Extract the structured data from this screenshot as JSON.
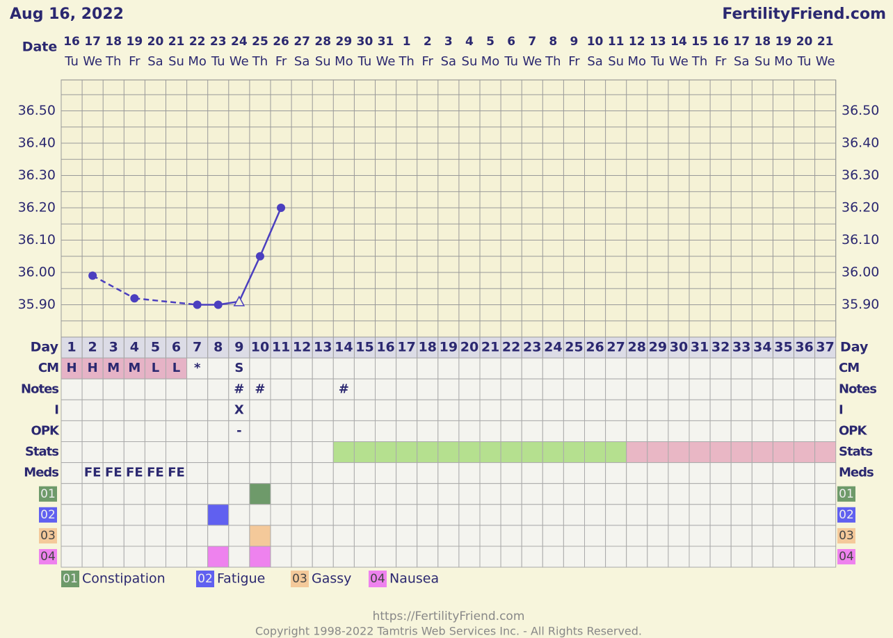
{
  "header": {
    "date": "Aug 16, 2022",
    "site": "FertilityFriend.com"
  },
  "chart_data": {
    "type": "line",
    "date_label": "Date",
    "dates": [
      "16",
      "17",
      "18",
      "19",
      "20",
      "21",
      "22",
      "23",
      "24",
      "25",
      "26",
      "27",
      "28",
      "29",
      "30",
      "31",
      "1",
      "2",
      "3",
      "4",
      "5",
      "6",
      "7",
      "8",
      "9",
      "10",
      "11",
      "12",
      "13",
      "14",
      "15",
      "16",
      "17",
      "18",
      "19",
      "20",
      "21"
    ],
    "weekdays": [
      "Tu",
      "We",
      "Th",
      "Fr",
      "Sa",
      "Su",
      "Mo",
      "Tu",
      "We",
      "Th",
      "Fr",
      "Sa",
      "Su",
      "Mo",
      "Tu",
      "We",
      "Th",
      "Fr",
      "Sa",
      "Su",
      "Mo",
      "Tu",
      "We",
      "Th",
      "Fr",
      "Sa",
      "Su",
      "Mo",
      "Tu",
      "We",
      "Th",
      "Fr",
      "Sa",
      "Su",
      "Mo",
      "Tu",
      "We"
    ],
    "day_label": "Day",
    "days": [
      1,
      2,
      3,
      4,
      5,
      6,
      7,
      8,
      9,
      10,
      11,
      12,
      13,
      14,
      15,
      16,
      17,
      18,
      19,
      20,
      21,
      22,
      23,
      24,
      25,
      26,
      27,
      28,
      29,
      30,
      31,
      32,
      33,
      34,
      35,
      36,
      37
    ],
    "ylim": [
      35.8,
      36.6
    ],
    "yticks": [
      {
        "value": 35.9,
        "label": "35.90"
      },
      {
        "value": 36.0,
        "label": "36.00"
      },
      {
        "value": 36.1,
        "label": "36.10"
      },
      {
        "value": 36.2,
        "label": "36.20"
      },
      {
        "value": 36.3,
        "label": "36.30"
      },
      {
        "value": 36.4,
        "label": "36.40"
      },
      {
        "value": 36.5,
        "label": "36.50"
      }
    ],
    "minor_yticks": [
      35.85,
      35.95,
      36.05,
      36.15,
      36.25,
      36.35,
      36.45,
      36.55
    ],
    "color": "#4b3fbf",
    "values": [
      null,
      35.99,
      null,
      35.92,
      null,
      null,
      35.9,
      35.9,
      35.91,
      36.05,
      36.2,
      null,
      null,
      null,
      null,
      null,
      null,
      null,
      null,
      null,
      null,
      null,
      null,
      null,
      null,
      null,
      null,
      null,
      null,
      null,
      null,
      null,
      null,
      null,
      null,
      null,
      null
    ],
    "open_days": [
      9
    ]
  },
  "rows": [
    {
      "label": "CM",
      "cells": [
        "H",
        "H",
        "M",
        "M",
        "L",
        "L",
        "*",
        null,
        "S",
        null,
        null,
        null,
        null,
        null,
        null,
        null,
        null,
        null,
        null,
        null,
        null,
        null,
        null,
        null,
        null,
        null,
        null,
        null,
        null,
        null,
        null,
        null,
        null,
        null,
        null,
        null,
        null
      ],
      "fills": [
        {
          "from": 1,
          "to": 6,
          "color": "#e6b3c6"
        }
      ]
    },
    {
      "label": "Notes",
      "cells": [
        null,
        null,
        null,
        null,
        null,
        null,
        null,
        null,
        "#",
        "#",
        null,
        null,
        null,
        "#",
        null,
        null,
        null,
        null,
        null,
        null,
        null,
        null,
        null,
        null,
        null,
        null,
        null,
        null,
        null,
        null,
        null,
        null,
        null,
        null,
        null,
        null,
        null
      ],
      "fills": []
    },
    {
      "label": "I",
      "cells": [
        null,
        null,
        null,
        null,
        null,
        null,
        null,
        null,
        "X",
        null,
        null,
        null,
        null,
        null,
        null,
        null,
        null,
        null,
        null,
        null,
        null,
        null,
        null,
        null,
        null,
        null,
        null,
        null,
        null,
        null,
        null,
        null,
        null,
        null,
        null,
        null,
        null
      ],
      "fills": []
    },
    {
      "label": "OPK",
      "cells": [
        null,
        null,
        null,
        null,
        null,
        null,
        null,
        null,
        "-",
        null,
        null,
        null,
        null,
        null,
        null,
        null,
        null,
        null,
        null,
        null,
        null,
        null,
        null,
        null,
        null,
        null,
        null,
        null,
        null,
        null,
        null,
        null,
        null,
        null,
        null,
        null,
        null
      ],
      "fills": []
    },
    {
      "label": "Stats",
      "fills": [
        {
          "from": 14,
          "to": 27,
          "color": "#b5e08f"
        },
        {
          "from": 28,
          "to": 37,
          "color": "#e9b7c5"
        }
      ]
    },
    {
      "label": "Meds",
      "cells": [
        null,
        "FE",
        "FE",
        "FE",
        "FE",
        "FE",
        null,
        null,
        null,
        null,
        null,
        null,
        null,
        null,
        null,
        null,
        null,
        null,
        null,
        null,
        null,
        null,
        null,
        null,
        null,
        null,
        null,
        null,
        null,
        null,
        null,
        null,
        null,
        null,
        null,
        null,
        null
      ],
      "fills": []
    },
    {
      "label": "01",
      "badge": "#6e9a6a",
      "fills": [
        {
          "from": 10,
          "to": 10,
          "color": "#6e9a6a"
        }
      ]
    },
    {
      "label": "02",
      "badge": "#6060f0",
      "fills": [
        {
          "from": 8,
          "to": 8,
          "color": "#6060f0"
        }
      ]
    },
    {
      "label": "03",
      "badge": "#f4c99a",
      "fills": [
        {
          "from": 10,
          "to": 10,
          "color": "#f4c99a"
        }
      ]
    },
    {
      "label": "04",
      "badge": "#ee82ee",
      "fills": [
        {
          "from": 8,
          "to": 8,
          "color": "#ee82ee"
        },
        {
          "from": 10,
          "to": 10,
          "color": "#ee82ee"
        }
      ]
    }
  ],
  "legend": [
    {
      "code": "01",
      "name": "Constipation",
      "color": "#6e9a6a"
    },
    {
      "code": "02",
      "name": "Fatigue",
      "color": "#6060f0"
    },
    {
      "code": "03",
      "name": "Gassy",
      "color": "#f4c99a"
    },
    {
      "code": "04",
      "name": "Nausea",
      "color": "#ee82ee"
    }
  ],
  "footer": {
    "url": "https://FertilityFriend.com",
    "copyright": "Copyright 1998-2022 Tamtris Web Services Inc. - All Rights Reserved."
  }
}
